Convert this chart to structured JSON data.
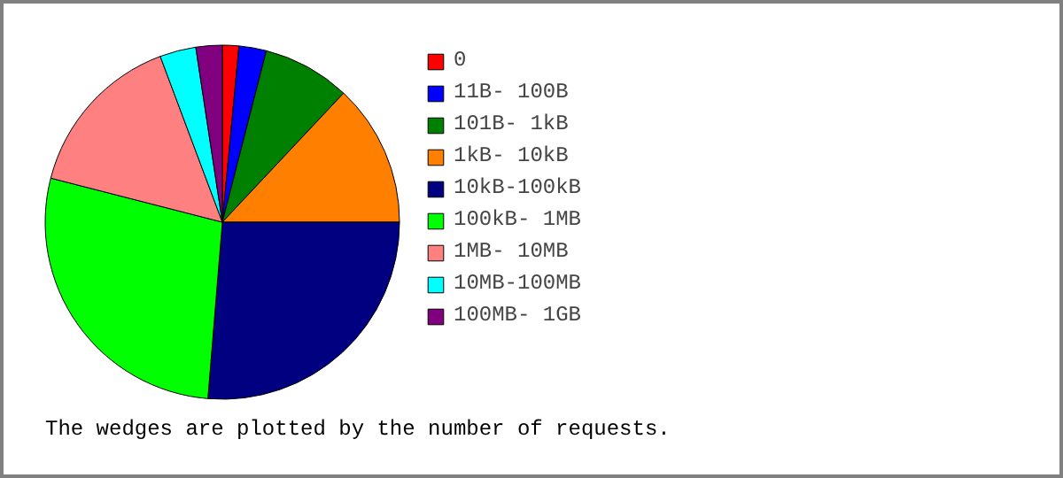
{
  "chart_data": {
    "type": "pie",
    "categories": [
      "0",
      "11B- 100B",
      "101B- 1kB",
      "1kB- 10kB",
      "10kB-100kB",
      "100kB- 1MB",
      "1MB- 10MB",
      "10MB-100MB",
      "100MB- 1GB"
    ],
    "values": [
      1.5,
      2.5,
      8,
      13,
      26.3,
      27.7,
      15.3,
      3.3,
      2.4
    ],
    "colors": [
      "#ff0000",
      "#0000ff",
      "#008000",
      "#ff8000",
      "#000080",
      "#00ff00",
      "#ff8080",
      "#00ffff",
      "#800080"
    ],
    "legend": "right",
    "annotations": [
      "The wedges are plotted by the number of requests."
    ]
  }
}
